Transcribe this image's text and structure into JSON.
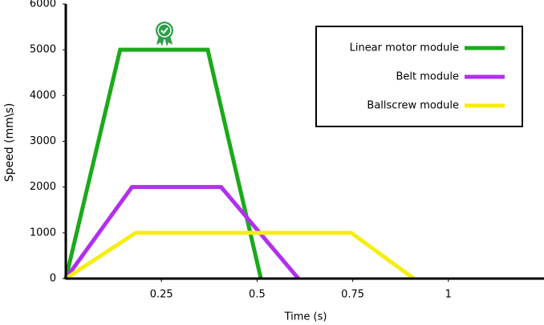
{
  "chart_data": {
    "type": "line",
    "x_label": "Time (s)",
    "y_label": "Speed (mm\\s)",
    "xlim": [
      0,
      1.25
    ],
    "xticks": [
      0.25,
      0.5,
      0.75,
      1
    ],
    "ylim": [
      0,
      6000
    ],
    "yticks": [
      0,
      1000,
      2000,
      3000,
      4000,
      5000,
      6000
    ],
    "legend": "top-right",
    "series": [
      {
        "name": "Linear motor module",
        "color": "#1aaa1a",
        "x": [
          0,
          0.142,
          0.371,
          0.51
        ],
        "values": [
          0,
          5000,
          5000,
          0
        ]
      },
      {
        "name": "Belt module",
        "color": "#b030f0",
        "x": [
          0,
          0.173,
          0.406,
          0.608
        ],
        "values": [
          0,
          2000,
          2000,
          0
        ]
      },
      {
        "name": "Ballscrew module",
        "color": "#f5ee10",
        "x": [
          0,
          0.183,
          0.746,
          0.91
        ],
        "values": [
          0,
          1000,
          1000,
          0
        ]
      }
    ]
  }
}
